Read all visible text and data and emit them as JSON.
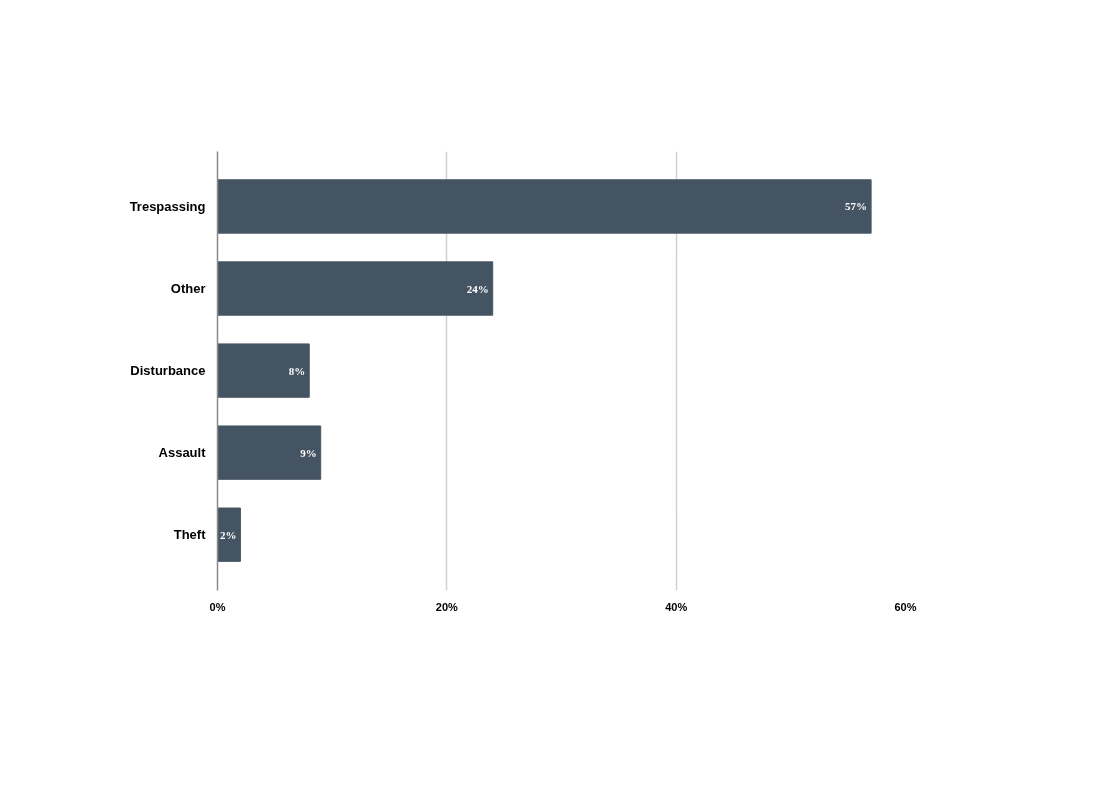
{
  "chart_data": {
    "type": "bar",
    "orientation": "horizontal",
    "categories": [
      "Trespassing",
      "Other",
      "Disturbance",
      "Assault",
      "Theft"
    ],
    "values": [
      57,
      24,
      8,
      9,
      2
    ],
    "value_labels": [
      "57%",
      "24%",
      "8%",
      "9%",
      "2%"
    ],
    "color": "#455462",
    "xlim": [
      0,
      60
    ],
    "xticks": [
      {
        "value": 0,
        "label": "0%"
      },
      {
        "value": 20,
        "label": "20%"
      },
      {
        "value": 40,
        "label": "40%"
      },
      {
        "value": 60,
        "label": "60%"
      }
    ],
    "grid": "x"
  }
}
